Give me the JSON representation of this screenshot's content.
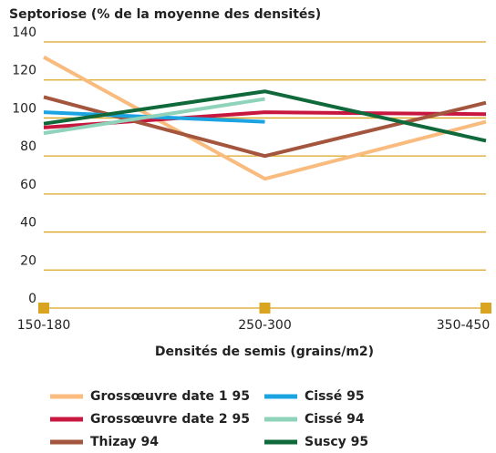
{
  "chart_data": {
    "type": "line",
    "title": "Septoriose (% de la moyenne des densités)",
    "x_label": "Densités de semis (grains/m2)",
    "categories": [
      "150-180",
      "250-300",
      "350-450"
    ],
    "ylim": [
      0,
      140
    ],
    "yticks": [
      0,
      20,
      40,
      60,
      80,
      100,
      120,
      140
    ],
    "grid": true,
    "grid_color": "#d9a521",
    "series": [
      {
        "name": "Grossœuvre date 1 95",
        "color": "#f9bb7e",
        "values": [
          132,
          68,
          98
        ]
      },
      {
        "name": "Grossœuvre date 2 95",
        "color": "#c8173f",
        "values": [
          95,
          103,
          102
        ]
      },
      {
        "name": "Thizay 94",
        "color": "#a3563d",
        "values": [
          111,
          80,
          108
        ]
      },
      {
        "name": "Cissé 95",
        "color": "#1ca3e2",
        "values": [
          103,
          98,
          null
        ]
      },
      {
        "name": "Cissé 94",
        "color": "#8fd3bb",
        "values": [
          92,
          110,
          null
        ]
      },
      {
        "name": "Suscy 95",
        "color": "#10693a",
        "values": [
          97,
          114,
          88
        ]
      }
    ]
  }
}
